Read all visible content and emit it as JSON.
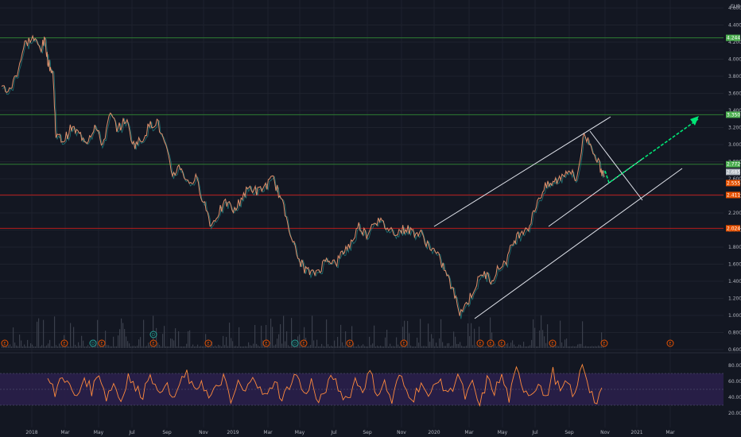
{
  "chart_data": {
    "type": "line",
    "currency": "EUR",
    "price_axis": {
      "ticks": [
        "4.600",
        "4.400",
        "4.200",
        "4.000",
        "3.800",
        "3.600",
        "3.400",
        "3.200",
        "3.000",
        "2.800",
        "2.600",
        "2.400",
        "2.200",
        "2.000",
        "1.800",
        "1.600",
        "1.400",
        "1.200",
        "1.000",
        "0.800",
        "0.600"
      ],
      "ylim": [
        0.6,
        4.6
      ]
    },
    "rsi_axis": {
      "ticks": [
        "80.00",
        "60.00",
        "40.00",
        "20.00"
      ],
      "ylim": [
        10,
        90
      ],
      "band": [
        30,
        70
      ]
    },
    "x_ticks": [
      "2018",
      "Mar",
      "May",
      "Jul",
      "Sep",
      "Nov",
      "2019",
      "Mar",
      "May",
      "Jul",
      "Sep",
      "Nov",
      "2020",
      "Mar",
      "May",
      "Jul",
      "Sep",
      "Nov",
      "2021",
      "Mar"
    ],
    "price_series": [
      {
        "t": 0,
        "v": 3.68
      },
      {
        "t": 1,
        "v": 3.62
      },
      {
        "t": 2,
        "v": 3.85
      },
      {
        "t": 3,
        "v": 4.18
      },
      {
        "t": 4,
        "v": 4.25
      },
      {
        "t": 5,
        "v": 4.12
      },
      {
        "t": 5.6,
        "v": 4.22
      },
      {
        "t": 6,
        "v": 3.95
      },
      {
        "t": 6.6,
        "v": 3.85
      },
      {
        "t": 7,
        "v": 3.1
      },
      {
        "t": 8,
        "v": 3.05
      },
      {
        "t": 9,
        "v": 3.2
      },
      {
        "t": 10,
        "v": 3.12
      },
      {
        "t": 11,
        "v": 3.05
      },
      {
        "t": 12,
        "v": 3.22
      },
      {
        "t": 13,
        "v": 3.0
      },
      {
        "t": 14,
        "v": 3.35
      },
      {
        "t": 15,
        "v": 3.18
      },
      {
        "t": 16,
        "v": 3.3
      },
      {
        "t": 17,
        "v": 3.0
      },
      {
        "t": 18,
        "v": 3.05
      },
      {
        "t": 19,
        "v": 3.22
      },
      {
        "t": 20,
        "v": 3.28
      },
      {
        "t": 21,
        "v": 3.0
      },
      {
        "t": 22,
        "v": 2.65
      },
      {
        "t": 23,
        "v": 2.75
      },
      {
        "t": 24,
        "v": 2.55
      },
      {
        "t": 25,
        "v": 2.6
      },
      {
        "t": 26,
        "v": 2.35
      },
      {
        "t": 27,
        "v": 2.05
      },
      {
        "t": 28,
        "v": 2.22
      },
      {
        "t": 29,
        "v": 2.32
      },
      {
        "t": 30,
        "v": 2.22
      },
      {
        "t": 31,
        "v": 2.4
      },
      {
        "t": 32,
        "v": 2.5
      },
      {
        "t": 33,
        "v": 2.45
      },
      {
        "t": 34,
        "v": 2.52
      },
      {
        "t": 35,
        "v": 2.6
      },
      {
        "t": 36,
        "v": 2.35
      },
      {
        "t": 37,
        "v": 2.05
      },
      {
        "t": 38,
        "v": 1.7
      },
      {
        "t": 39,
        "v": 1.55
      },
      {
        "t": 40,
        "v": 1.48
      },
      {
        "t": 41,
        "v": 1.55
      },
      {
        "t": 42,
        "v": 1.68
      },
      {
        "t": 43,
        "v": 1.6
      },
      {
        "t": 44,
        "v": 1.75
      },
      {
        "t": 45,
        "v": 1.85
      },
      {
        "t": 46,
        "v": 2.05
      },
      {
        "t": 47,
        "v": 1.95
      },
      {
        "t": 48,
        "v": 2.12
      },
      {
        "t": 49,
        "v": 2.08
      },
      {
        "t": 50,
        "v": 2.0
      },
      {
        "t": 51,
        "v": 1.98
      },
      {
        "t": 52,
        "v": 2.02
      },
      {
        "t": 53,
        "v": 1.98
      },
      {
        "t": 54,
        "v": 1.95
      },
      {
        "t": 55,
        "v": 1.82
      },
      {
        "t": 56,
        "v": 1.72
      },
      {
        "t": 57,
        "v": 1.55
      },
      {
        "t": 58,
        "v": 1.32
      },
      {
        "t": 59,
        "v": 1.05
      },
      {
        "t": 60,
        "v": 1.15
      },
      {
        "t": 61,
        "v": 1.35
      },
      {
        "t": 62,
        "v": 1.5
      },
      {
        "t": 63,
        "v": 1.42
      },
      {
        "t": 64,
        "v": 1.55
      },
      {
        "t": 65,
        "v": 1.65
      },
      {
        "t": 66,
        "v": 1.88
      },
      {
        "t": 67,
        "v": 2.0
      },
      {
        "t": 68,
        "v": 2.05
      },
      {
        "t": 69,
        "v": 2.35
      },
      {
        "t": 70,
        "v": 2.5
      },
      {
        "t": 71,
        "v": 2.55
      },
      {
        "t": 72,
        "v": 2.62
      },
      {
        "t": 73,
        "v": 2.72
      },
      {
        "t": 74,
        "v": 2.58
      },
      {
        "t": 75,
        "v": 3.12
      },
      {
        "t": 76,
        "v": 2.98
      },
      {
        "t": 77,
        "v": 2.75
      },
      {
        "t": 77.6,
        "v": 2.62
      }
    ],
    "rsi_series": [
      62,
      45,
      70,
      52,
      38,
      66,
      48,
      72,
      40,
      58,
      35,
      68,
      50,
      44,
      74,
      42,
      60,
      36,
      55,
      70,
      46,
      62,
      38,
      50,
      66,
      32,
      58,
      44,
      72,
      48,
      40,
      64,
      36,
      56,
      70,
      42,
      60,
      30,
      52,
      66,
      46,
      38,
      62,
      50,
      72,
      44,
      58,
      34,
      68,
      48,
      40,
      60,
      36,
      64,
      52,
      46,
      70,
      40,
      56,
      28,
      62,
      48,
      66,
      38,
      74,
      52,
      44,
      60,
      36,
      72,
      46,
      58,
      40,
      84,
      52,
      30,
      56
    ],
    "horizontal_levels": [
      {
        "value": 4.25,
        "color": "#2e7d32",
        "tag": "4.244",
        "tag_color": "#4caf50"
      },
      {
        "value": 3.35,
        "color": "#2e7d32",
        "tag": "3.350",
        "tag_color": "#4caf50"
      },
      {
        "value": 2.77,
        "color": "#2e7d32",
        "tag": "2.772",
        "tag_color": "#4caf50"
      },
      {
        "value": 2.41,
        "color": "#b71c1c",
        "tag": "2.411",
        "tag_color": "#e65100"
      },
      {
        "value": 2.02,
        "color": "#b71c1c",
        "tag": "2.024",
        "tag_color": "#e65100"
      }
    ],
    "last_price_tags": [
      {
        "value": 2.68,
        "tag": "2.685",
        "tag_color": "#b0b8c0"
      },
      {
        "value": 2.55,
        "tag": "2.555",
        "tag_color": "#e65100"
      }
    ],
    "colors": {
      "background": "#131722",
      "price_line": "#e0906b",
      "price_shadow": "#1f8a8a",
      "rsi_line": "#ff8a3d",
      "rsi_band": "#2a1f4a",
      "grid": "#1e222d",
      "channel": "#e0e3eb",
      "projection": "#00e676"
    },
    "event_markers": [
      {
        "t": 1,
        "label": "E"
      },
      {
        "t": 9,
        "label": "E"
      },
      {
        "t": 14,
        "label": "D"
      },
      {
        "t": 15,
        "label": "D"
      },
      {
        "t": 18,
        "label": "E"
      },
      {
        "t": 22,
        "label": "D"
      },
      {
        "t": 22,
        "label": "E"
      },
      {
        "t": 31,
        "label": "E"
      },
      {
        "t": 38,
        "label": "E"
      },
      {
        "t": 44,
        "label": "D"
      },
      {
        "t": 45,
        "label": "E"
      },
      {
        "t": 53,
        "label": "E"
      },
      {
        "t": 60,
        "label": "E"
      },
      {
        "t": 67,
        "label": "E"
      },
      {
        "t": 70,
        "label": "E"
      },
      {
        "t": 79,
        "label": "E"
      },
      {
        "t": 88,
        "label": "E"
      },
      {
        "t": 98,
        "label": "E"
      }
    ],
    "dividend_marker_above": {
      "t": 22,
      "label": "D"
    }
  }
}
